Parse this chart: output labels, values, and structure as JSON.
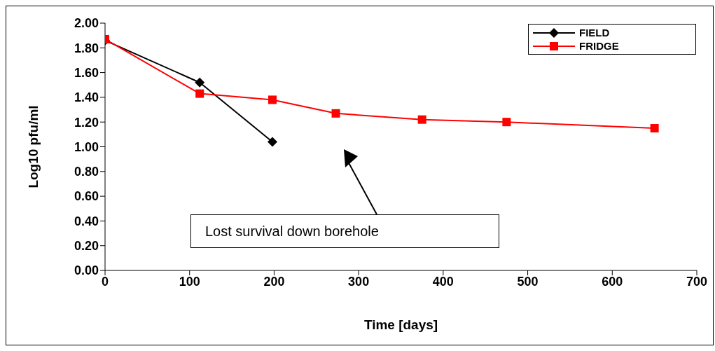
{
  "chart_data": {
    "type": "line",
    "xlabel": "Time [days]",
    "ylabel": "Log10 pfu/ml",
    "series": [
      {
        "name": "FIELD",
        "color": "#000000",
        "marker": "diamond",
        "x": [
          0,
          112,
          198
        ],
        "values": [
          1.86,
          1.52,
          1.04
        ]
      },
      {
        "name": "FRIDGE",
        "color": "#ff0000",
        "marker": "square",
        "x": [
          0,
          112,
          198,
          273,
          375,
          475,
          650
        ],
        "values": [
          1.87,
          1.43,
          1.38,
          1.27,
          1.22,
          1.2,
          1.15
        ]
      }
    ],
    "xlim": [
      0,
      700
    ],
    "xticks": [
      0,
      100,
      200,
      300,
      400,
      500,
      600,
      700
    ],
    "ylim": [
      0,
      2
    ],
    "yticks": [
      {
        "value": 0,
        "label": "0.00"
      },
      {
        "value": 0.2,
        "label": "0.20"
      },
      {
        "value": 0.4,
        "label": "0.40"
      },
      {
        "value": 0.6,
        "label": "0.60"
      },
      {
        "value": 0.8,
        "label": "0.80"
      },
      {
        "value": 1,
        "label": "1.00"
      },
      {
        "value": 1.2,
        "label": "1.20"
      },
      {
        "value": 1.4,
        "label": "1.40"
      },
      {
        "value": 1.6,
        "label": "1.60"
      },
      {
        "value": 1.8,
        "label": "1.80"
      },
      {
        "value": 2,
        "label": "2.00"
      }
    ],
    "grid": false,
    "legend": "top right",
    "line_style": "solid",
    "annotations": [
      "Lost survival down borehole"
    ]
  }
}
